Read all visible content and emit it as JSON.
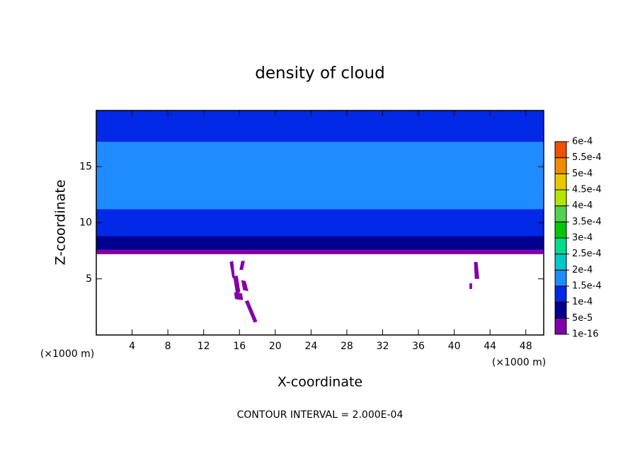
{
  "chart_data": {
    "type": "contour",
    "title": "density of cloud",
    "x_label": "X-coordinate",
    "y_label": "Z-coordinate",
    "x_unit": "(×1000 m)",
    "y_unit": "(×1000 m)",
    "footer": "CONTOUR INTERVAL = 2.000E-04",
    "xlim": [
      0,
      50
    ],
    "ylim": [
      0,
      20
    ],
    "xticks": [
      4,
      8,
      12,
      16,
      20,
      24,
      28,
      32,
      36,
      40,
      44,
      48
    ],
    "yticks": [
      5,
      10,
      15
    ],
    "colorbar_ticks": [
      {
        "value": 1e-16,
        "label": "1e-16"
      },
      {
        "value": 5e-05,
        "label": "5e-5"
      },
      {
        "value": 0.0001,
        "label": "1e-4"
      },
      {
        "value": 0.00015,
        "label": "1.5e-4"
      },
      {
        "value": 0.0002,
        "label": "2e-4"
      },
      {
        "value": 0.00025,
        "label": "2.5e-4"
      },
      {
        "value": 0.0003,
        "label": "3e-4"
      },
      {
        "value": 0.00035,
        "label": "3.5e-4"
      },
      {
        "value": 0.0004,
        "label": "4e-4"
      },
      {
        "value": 0.00045,
        "label": "4.5e-4"
      },
      {
        "value": 0.0005,
        "label": "5e-4"
      },
      {
        "value": 0.00055,
        "label": "5.5e-4"
      },
      {
        "value": 0.0006,
        "label": "6e-4"
      }
    ],
    "colorbar_colors": [
      "#8200a8",
      "#000090",
      "#0028e6",
      "#1e8cff",
      "#00c8c8",
      "#00dc8c",
      "#00c800",
      "#50d250",
      "#b4e600",
      "#e6c800",
      "#f08c00",
      "#f05000",
      "#f08080"
    ],
    "layers": [
      {
        "z": [
          7.2,
          7.6
        ],
        "value": 2e-05
      },
      {
        "z": [
          7.6,
          8.8
        ],
        "value": 7e-05
      },
      {
        "z": [
          8.8,
          11.2
        ],
        "value": 0.00012
      },
      {
        "z": [
          11.2,
          17.2
        ],
        "value": 0.00016
      },
      {
        "z": [
          17.2,
          20
        ],
        "value": 0.00013
      }
    ],
    "patches": [
      {
        "x": [
          14.9,
          15.3,
          15.5,
          15.2
        ],
        "z": [
          6.5,
          6.6,
          5.0,
          5.1
        ],
        "value": 2e-05
      },
      {
        "x": [
          15.3,
          15.8,
          16.1,
          15.6
        ],
        "z": [
          5.2,
          5.3,
          3.8,
          3.7
        ],
        "value": 2e-05
      },
      {
        "x": [
          15.4,
          16.3,
          16.4,
          15.5
        ],
        "z": [
          3.8,
          3.7,
          3.1,
          3.2
        ],
        "value": 2e-05
      },
      {
        "x": [
          16.2,
          16.7,
          17.0,
          16.4
        ],
        "z": [
          4.9,
          4.8,
          3.9,
          4.0
        ],
        "value": 2e-05
      },
      {
        "x": [
          16.6,
          17.0,
          18.0,
          17.6
        ],
        "z": [
          3.0,
          3.1,
          1.2,
          1.1
        ],
        "value": 2e-05
      },
      {
        "x": [
          16.2,
          16.6,
          16.4,
          16.0
        ],
        "z": [
          6.6,
          6.6,
          5.8,
          5.8
        ],
        "value": 2e-05
      },
      {
        "x": [
          42.2,
          42.6,
          42.8,
          42.3
        ],
        "z": [
          6.5,
          6.5,
          5.0,
          5.0
        ],
        "value": 2e-05
      },
      {
        "x": [
          41.7,
          42.0,
          42.0,
          41.7
        ],
        "z": [
          4.6,
          4.6,
          4.1,
          4.1
        ],
        "value": 2e-05
      }
    ]
  }
}
